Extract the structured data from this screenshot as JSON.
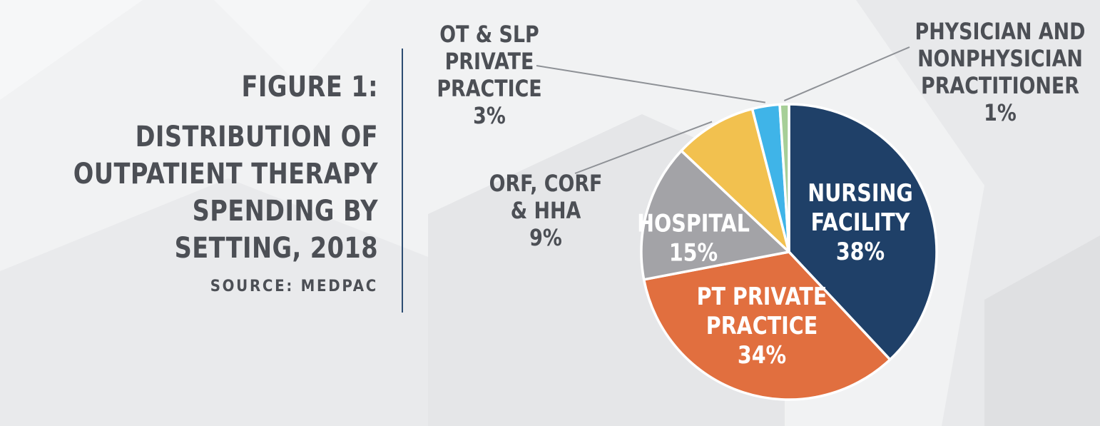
{
  "figure": {
    "label": "FIGURE 1:",
    "title": "DISTRIBUTION OF\nOUTPATIENT THERAPY\nSPENDING BY SETTING, 2018",
    "source": "SOURCE: MEDPAC"
  },
  "colors": {
    "title_text": "#4c4f55",
    "divider": "#2d4d72",
    "leader_line": "#8e9196"
  },
  "chart_data": {
    "type": "pie",
    "title": "DISTRIBUTION OF OUTPATIENT THERAPY SPENDING BY SETTING, 2018",
    "unit": "%",
    "slices": [
      {
        "label": "NURSING FACILITY",
        "value": 38,
        "display": "38%",
        "color": "#1f4068",
        "label_lines": [
          "NURSING",
          "FACILITY"
        ],
        "label_position": "inside"
      },
      {
        "label": "PT PRIVATE PRACTICE",
        "value": 34,
        "display": "34%",
        "color": "#e16f3f",
        "label_lines": [
          "PT PRIVATE",
          "PRACTICE"
        ],
        "label_position": "inside"
      },
      {
        "label": "HOSPITAL",
        "value": 15,
        "display": "15%",
        "color": "#a3a3a7",
        "label_lines": [
          "HOSPITAL"
        ],
        "label_position": "inside"
      },
      {
        "label": "ORF, CORF & HHA",
        "value": 9,
        "display": "9%",
        "color": "#f2c14f",
        "label_lines": [
          "ORF, CORF",
          "& HHA"
        ],
        "label_position": "outside-left"
      },
      {
        "label": "OT & SLP PRIVATE PRACTICE",
        "value": 3,
        "display": "3%",
        "color": "#3fb4e8",
        "label_lines": [
          "OT & SLP",
          "PRIVATE",
          "PRACTICE"
        ],
        "label_position": "outside-top-left"
      },
      {
        "label": "PHYSICIAN AND NONPHYSICIAN PRACTITIONER",
        "value": 1,
        "display": "1%",
        "color": "#a7cf98",
        "label_lines": [
          "PHYSICIAN AND",
          "NONPHYSICIAN",
          "PRACTITIONER"
        ],
        "label_position": "outside-top-right"
      }
    ]
  }
}
